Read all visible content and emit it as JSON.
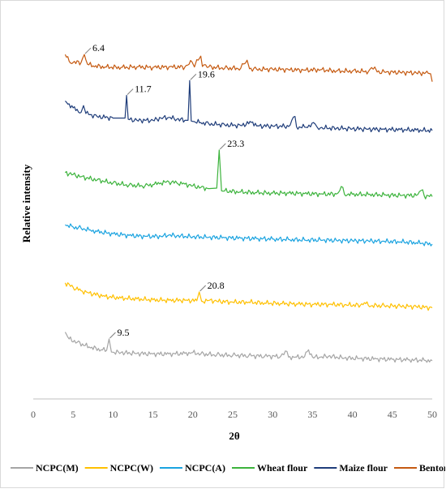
{
  "chart_data": {
    "type": "line",
    "title": "",
    "xlabel": "2θ",
    "ylabel": "Relative intensity",
    "xlim": [
      0,
      50
    ],
    "x_ticks": [
      "0",
      "5",
      "10",
      "15",
      "20",
      "25",
      "30",
      "35",
      "40",
      "45",
      "50"
    ],
    "y_ticks_shown": false,
    "grid": false,
    "legend_position": "bottom",
    "series": [
      {
        "name": "NCPC(M)",
        "color": "#a5a5a5",
        "x": [
          4,
          4.5,
          5.5,
          7,
          8.5,
          9.2,
          9.5,
          9.8,
          11,
          13,
          15,
          17,
          19,
          20,
          21,
          23,
          25,
          27,
          29,
          31,
          31.8,
          32,
          33,
          34,
          34.5,
          35,
          36,
          37,
          39,
          41,
          43,
          45,
          47,
          49,
          50
        ],
        "y": [
          1.3,
          1.0,
          0.85,
          0.65,
          0.52,
          0.5,
          1.0,
          0.42,
          0.4,
          0.36,
          0.34,
          0.34,
          0.36,
          0.4,
          0.34,
          0.3,
          0.28,
          0.26,
          0.24,
          0.23,
          0.45,
          0.2,
          0.2,
          0.22,
          0.52,
          0.2,
          0.2,
          0.24,
          0.16,
          0.14,
          0.12,
          0.1,
          0.08,
          0.06,
          0.04
        ],
        "peaks": [
          {
            "x": 9.5,
            "label": "9.5"
          }
        ]
      },
      {
        "name": "NCPC(W)",
        "color": "#ffc000",
        "x": [
          4,
          5,
          6,
          7,
          9,
          11,
          13,
          15,
          17,
          19,
          20.5,
          20.8,
          21.1,
          22,
          23,
          25,
          27,
          29,
          31,
          33,
          35,
          37,
          39,
          41,
          41.5,
          42,
          44,
          46,
          48,
          50
        ],
        "y": [
          1.15,
          0.95,
          0.8,
          0.7,
          0.55,
          0.48,
          0.44,
          0.4,
          0.38,
          0.38,
          0.36,
          0.75,
          0.34,
          0.38,
          0.34,
          0.3,
          0.3,
          0.26,
          0.24,
          0.22,
          0.2,
          0.2,
          0.18,
          0.16,
          0.28,
          0.15,
          0.14,
          0.12,
          0.1,
          0.05
        ],
        "peaks": [
          {
            "x": 20.8,
            "label": "20.8"
          }
        ]
      },
      {
        "name": "NCPC(A)",
        "color": "#1aa3e0",
        "x": [
          4,
          5,
          6,
          7,
          8,
          10,
          12,
          14,
          16,
          17,
          18,
          20,
          22,
          24,
          26,
          28,
          30,
          32,
          34,
          36,
          38,
          40,
          42,
          44,
          46,
          48,
          50
        ],
        "y": [
          0.85,
          0.75,
          0.7,
          0.62,
          0.55,
          0.45,
          0.38,
          0.34,
          0.34,
          0.4,
          0.36,
          0.32,
          0.3,
          0.28,
          0.26,
          0.24,
          0.22,
          0.2,
          0.18,
          0.18,
          0.16,
          0.15,
          0.14,
          0.12,
          0.1,
          0.06,
          0.0
        ],
        "peaks": []
      },
      {
        "name": "Wheat flour",
        "color": "#3cb33c",
        "x": [
          4,
          5,
          6,
          8,
          10,
          12,
          14,
          15,
          16,
          17,
          18,
          19,
          20,
          21,
          22,
          23,
          23.3,
          23.6,
          24,
          26,
          28,
          30,
          32,
          34,
          36,
          38,
          38.8,
          39,
          40,
          42,
          44,
          46,
          48,
          48.8,
          49,
          50
        ],
        "y": [
          1.0,
          0.92,
          0.82,
          0.68,
          0.55,
          0.45,
          0.42,
          0.48,
          0.55,
          0.6,
          0.55,
          0.5,
          0.42,
          0.35,
          0.3,
          0.32,
          2.0,
          0.2,
          0.2,
          0.15,
          0.12,
          0.1,
          0.1,
          0.08,
          0.06,
          0.06,
          0.35,
          0.05,
          0.05,
          0.04,
          0.02,
          0.0,
          0.0,
          0.25,
          -0.02,
          -0.05
        ],
        "peaks": [
          {
            "x": 23.3,
            "label": "23.3"
          }
        ]
      },
      {
        "name": "Maize flour",
        "color": "#1f3d7a",
        "x": [
          4,
          5,
          6,
          6.3,
          6.6,
          8,
          10,
          11.5,
          11.7,
          11.9,
          13,
          15,
          16,
          17,
          18,
          19,
          19.4,
          19.6,
          19.8,
          20,
          21,
          22,
          24,
          26,
          27.5,
          28,
          30,
          32,
          32.8,
          33,
          34,
          35.3,
          35.6,
          36,
          38,
          40,
          42,
          44,
          46,
          48,
          50
        ],
        "y": [
          1.3,
          1.0,
          0.8,
          1.1,
          0.75,
          0.62,
          0.55,
          0.55,
          1.55,
          0.5,
          0.45,
          0.45,
          0.55,
          0.58,
          0.5,
          0.45,
          0.45,
          2.2,
          0.42,
          0.4,
          0.35,
          0.3,
          0.25,
          0.22,
          0.38,
          0.2,
          0.2,
          0.18,
          0.62,
          0.16,
          0.15,
          0.3,
          0.14,
          0.12,
          0.1,
          0.08,
          0.06,
          0.05,
          0.04,
          0.02,
          0.0
        ],
        "peaks": [
          {
            "x": 11.7,
            "label": "11.7"
          },
          {
            "x": 19.6,
            "label": "19.6"
          }
        ]
      },
      {
        "name": "Bentonite",
        "color": "#c55a11",
        "x": [
          4,
          4.5,
          5,
          6,
          6.4,
          6.8,
          7.5,
          9,
          11,
          13,
          15,
          17,
          19,
          19.9,
          20.2,
          20.5,
          21,
          21.2,
          21.4,
          22,
          24,
          26,
          26.8,
          27.1,
          28,
          30,
          32,
          34,
          36,
          38,
          40,
          42,
          42.8,
          43.1,
          44,
          46,
          48,
          49.5,
          49.8,
          50
        ],
        "y": [
          0.85,
          0.55,
          0.5,
          0.5,
          0.85,
          0.42,
          0.35,
          0.3,
          0.28,
          0.3,
          0.28,
          0.3,
          0.3,
          0.52,
          0.3,
          0.62,
          0.78,
          0.32,
          0.4,
          0.3,
          0.25,
          0.24,
          0.6,
          0.22,
          0.2,
          0.2,
          0.18,
          0.16,
          0.18,
          0.12,
          0.12,
          0.1,
          0.3,
          0.08,
          0.08,
          0.06,
          0.04,
          0.02,
          0.0,
          -0.35
        ],
        "peaks": [
          {
            "x": 6.4,
            "label": "6.4"
          }
        ]
      }
    ]
  }
}
